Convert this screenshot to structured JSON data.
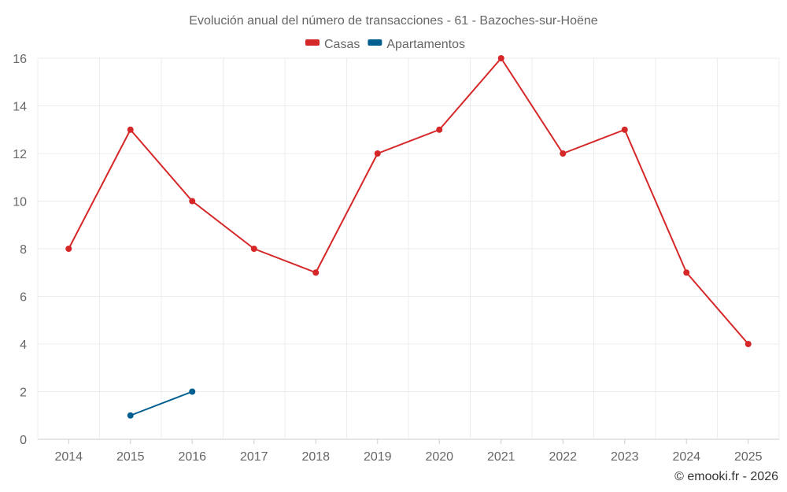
{
  "chart_data": {
    "type": "line",
    "title": "Evolución anual del número de transacciones - 61 - Bazoches-sur-Hoëne",
    "xlabel": "",
    "ylabel": "",
    "categories": [
      "2014",
      "2015",
      "2016",
      "2017",
      "2018",
      "2019",
      "2020",
      "2021",
      "2022",
      "2023",
      "2024",
      "2025"
    ],
    "ylim": [
      0,
      16
    ],
    "yticks": [
      "0",
      "2",
      "4",
      "6",
      "8",
      "10",
      "12",
      "14",
      "16"
    ],
    "grid": true,
    "legend_position": "top-center",
    "series": [
      {
        "name": "Casas",
        "color": "#d62728",
        "values": [
          8,
          13,
          10,
          8,
          7,
          12,
          13,
          16,
          12,
          13,
          7,
          4
        ]
      },
      {
        "name": "Apartamentos",
        "color": "#005f8f",
        "values": [
          null,
          1,
          2,
          null,
          null,
          null,
          null,
          null,
          null,
          null,
          null,
          null
        ]
      }
    ]
  },
  "credit": "© emooki.fr - 2026"
}
